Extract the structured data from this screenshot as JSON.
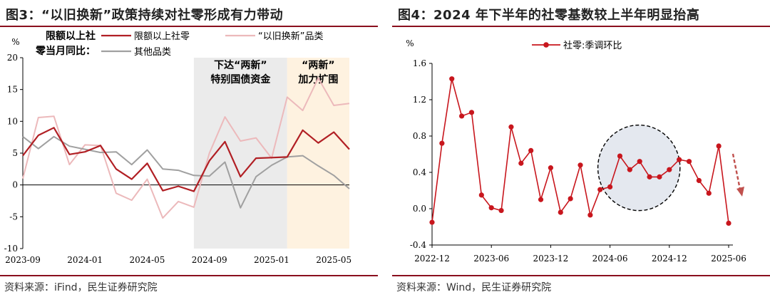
{
  "chart_data": [
    {
      "type": "line",
      "title": "图3：“以旧换新”政策持续对社零形成有力带动",
      "ylabel": "%",
      "ylim": [
        -10,
        20
      ],
      "yticks": [
        -10,
        -5,
        0,
        5,
        10,
        15,
        20
      ],
      "x_tick_labels": [
        "2023-09",
        "2024-01",
        "2024-05",
        "2024-09",
        "2025-01",
        "2025-05"
      ],
      "x": [
        "2023-09",
        "2023-10",
        "2023-11",
        "2023-12",
        "2024-01",
        "2024-02",
        "2024-03",
        "2024-04",
        "2024-05",
        "2024-06",
        "2024-07",
        "2024-08",
        "2024-09",
        "2024-10",
        "2024-11",
        "2024-12",
        "2025-01",
        "2025-02",
        "2025-03",
        "2025-04",
        "2025-05",
        "2025-06"
      ],
      "legend_title": "限额以上社零当月同比：",
      "series": [
        {
          "name": "限额以上社零",
          "color": "#b11f24",
          "values": [
            4.6,
            7.8,
            9.0,
            4.8,
            5.2,
            6.2,
            2.5,
            0.9,
            3.4,
            -0.9,
            -0.2,
            -1.0,
            3.8,
            6.8,
            1.3,
            4.2,
            4.3,
            4.4,
            8.6,
            6.6,
            8.3,
            5.6
          ]
        },
        {
          "name": "“以旧换新”品类",
          "color": "#ecb9bb",
          "values": [
            1.0,
            10.6,
            10.8,
            3.2,
            6.3,
            6.2,
            -1.3,
            -2.4,
            0.9,
            -5.2,
            -2.6,
            -3.5,
            5.0,
            10.7,
            6.9,
            7.4,
            4.2,
            13.8,
            11.7,
            16.8,
            12.5,
            12.8
          ]
        },
        {
          "name": "其他品类",
          "color": "#a0a0a0",
          "values": [
            7.6,
            5.7,
            7.6,
            6.1,
            5.6,
            5.1,
            5.2,
            3.2,
            5.5,
            2.5,
            2.3,
            1.5,
            1.4,
            3.6,
            -3.6,
            1.3,
            3.1,
            4.4,
            4.6,
            3.0,
            1.5,
            -0.6
          ]
        }
      ],
      "shaded_regions": [
        {
          "from": "2024-08",
          "to": "2025-02",
          "color": "#ebebeb",
          "label": [
            "下达“两新”",
            "特别国债资金"
          ]
        },
        {
          "from": "2025-02",
          "to": "2025-06",
          "color": "#fef2e0",
          "label": [
            "“两新”",
            "加力扩围"
          ]
        }
      ],
      "source": "资料来源：iFind，民生证券研究院"
    },
    {
      "type": "line",
      "title": "图4：2024 年下半年的社零基数较上半年明显抬高",
      "ylabel": "%",
      "ylim": [
        -0.4,
        1.6
      ],
      "yticks": [
        "-0.4",
        "0.0",
        "0.4",
        "0.8",
        "1.2",
        "1.6"
      ],
      "x_tick_labels": [
        "2022-12",
        "2023-06",
        "2023-12",
        "2024-06",
        "2024-12",
        "2025-06"
      ],
      "x": [
        "2022-12",
        "2023-01",
        "2023-02",
        "2023-03",
        "2023-04",
        "2023-05",
        "2023-06",
        "2023-07",
        "2023-08",
        "2023-09",
        "2023-10",
        "2023-11",
        "2023-12",
        "2024-01",
        "2024-02",
        "2024-03",
        "2024-04",
        "2024-05",
        "2024-06",
        "2024-07",
        "2024-08",
        "2024-09",
        "2024-10",
        "2024-11",
        "2024-12",
        "2025-01",
        "2025-02",
        "2025-03",
        "2025-04",
        "2025-05",
        "2025-06"
      ],
      "series": [
        {
          "name": "社零:季调环比",
          "color": "#c8161d",
          "values": [
            -0.15,
            0.72,
            1.43,
            1.02,
            1.06,
            0.15,
            0.01,
            -0.02,
            0.9,
            0.5,
            0.64,
            0.1,
            0.45,
            -0.04,
            0.11,
            0.48,
            -0.07,
            0.21,
            0.24,
            0.58,
            0.43,
            0.52,
            0.35,
            0.35,
            0.43,
            0.54,
            0.52,
            0.31,
            0.17,
            0.69,
            -0.16
          ]
        }
      ],
      "highlight": {
        "type": "dashed-circle",
        "around": [
          "2024-06",
          "2024-12"
        ],
        "fill": "#e4e8ef"
      },
      "arrow": {
        "type": "dashed-down",
        "near": "2025-06",
        "color": "#c0504d"
      },
      "source": "资料来源：Wind，民生证券研究院"
    }
  ]
}
